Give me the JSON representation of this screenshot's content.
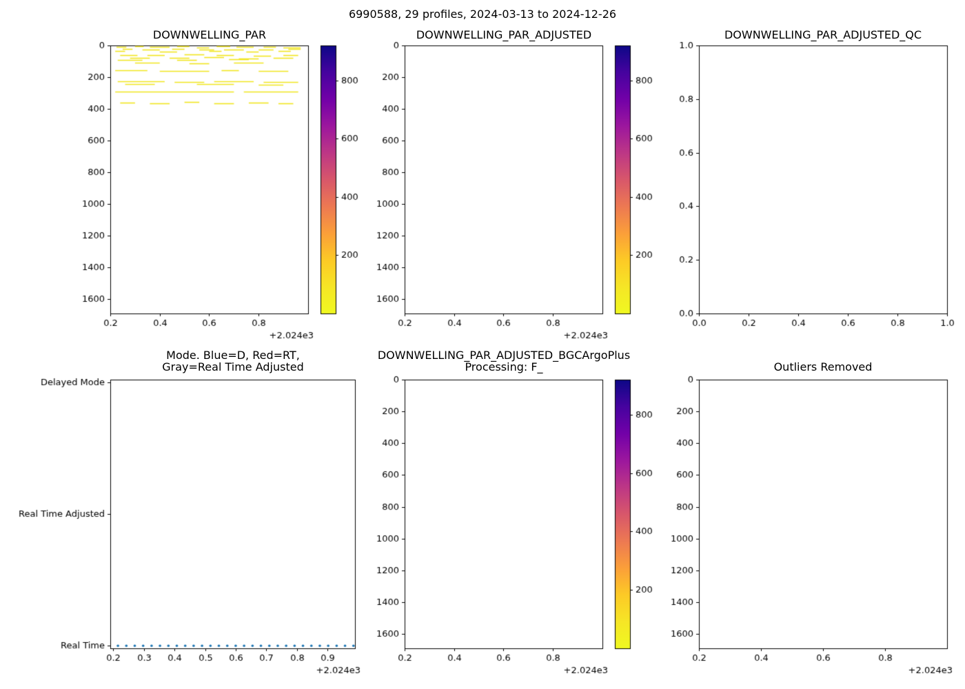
{
  "figure": {
    "title": "6990588, 29 profiles, 2024-03-13 to 2024-12-26",
    "background": "#ffffff"
  },
  "colors": {
    "axis": "#000000",
    "tick_label": "#000000",
    "dash_series": "#f1e51d",
    "dot_series": "#1f77b4"
  },
  "colormap": {
    "name": "plasma_r",
    "stops_top_to_bottom": [
      {
        "t": 0.0,
        "c": "#0d0887"
      },
      {
        "t": 0.1,
        "c": "#46039f"
      },
      {
        "t": 0.2,
        "c": "#7201a8"
      },
      {
        "t": 0.3,
        "c": "#9c179e"
      },
      {
        "t": 0.4,
        "c": "#bd3786"
      },
      {
        "t": 0.5,
        "c": "#d8576b"
      },
      {
        "t": 0.6,
        "c": "#ed7953"
      },
      {
        "t": 0.7,
        "c": "#fb9f3a"
      },
      {
        "t": 0.8,
        "c": "#fdca26"
      },
      {
        "t": 0.9,
        "c": "#f6e626"
      },
      {
        "t": 1.0,
        "c": "#f0f921"
      }
    ]
  },
  "chart_data": [
    {
      "type": "scatter",
      "title": "DOWNWELLING_PAR",
      "xlabel": "",
      "ylabel": "",
      "x_range": [
        2024.2,
        2025.0
      ],
      "y_range": [
        0,
        1690
      ],
      "x_ticks": {
        "values": [
          2024.2,
          2024.4,
          2024.6,
          2024.8
        ],
        "labels": [
          "0.2",
          "0.4",
          "0.6",
          "0.8"
        ],
        "offset": "+2.024e3"
      },
      "y_ticks": {
        "values": [
          0,
          200,
          400,
          600,
          800,
          1000,
          1200,
          1400,
          1600
        ],
        "labels": [
          "0",
          "200",
          "400",
          "600",
          "800",
          "1000",
          "1200",
          "1400",
          "1600"
        ]
      },
      "colorbar": {
        "range": [
          0,
          920
        ],
        "ticks": [
          200,
          400,
          600,
          800
        ],
        "tick_labels": [
          "200",
          "400",
          "600",
          "800"
        ],
        "cmap": "plasma_r"
      },
      "series": {
        "kind": "hdash",
        "color_key": "dash_series",
        "note": "horizontal dash markers [x_start_year, x_end_year, depth_m]",
        "segments": [
          [
            2024.225,
            2024.265,
            8
          ],
          [
            2024.3,
            2024.335,
            5
          ],
          [
            2024.36,
            2024.44,
            10
          ],
          [
            2024.47,
            2024.52,
            6
          ],
          [
            2024.55,
            2024.6,
            12
          ],
          [
            2024.63,
            2024.685,
            4
          ],
          [
            2024.71,
            2024.78,
            9
          ],
          [
            2024.82,
            2024.87,
            7
          ],
          [
            2024.9,
            2024.97,
            11
          ],
          [
            2024.25,
            2024.29,
            22
          ],
          [
            2024.33,
            2024.4,
            25
          ],
          [
            2024.45,
            2024.5,
            20
          ],
          [
            2024.56,
            2024.62,
            28
          ],
          [
            2024.66,
            2024.74,
            24
          ],
          [
            2024.8,
            2024.86,
            26
          ],
          [
            2024.92,
            2024.97,
            23
          ],
          [
            2024.22,
            2024.26,
            36
          ],
          [
            2024.4,
            2024.47,
            38
          ],
          [
            2024.6,
            2024.65,
            33
          ],
          [
            2024.75,
            2024.8,
            37
          ],
          [
            2024.88,
            2024.93,
            34
          ],
          [
            2024.24,
            2024.31,
            60
          ],
          [
            2024.35,
            2024.42,
            62
          ],
          [
            2024.5,
            2024.58,
            58
          ],
          [
            2024.63,
            2024.7,
            61
          ],
          [
            2024.78,
            2024.85,
            64
          ],
          [
            2024.9,
            2024.96,
            59
          ],
          [
            2024.28,
            2024.36,
            78
          ],
          [
            2024.44,
            2024.52,
            80
          ],
          [
            2024.58,
            2024.66,
            76
          ],
          [
            2024.72,
            2024.8,
            82
          ],
          [
            2024.86,
            2024.94,
            79
          ],
          [
            2024.23,
            2024.33,
            90
          ],
          [
            2024.47,
            2024.55,
            92
          ],
          [
            2024.68,
            2024.76,
            88
          ],
          [
            2024.3,
            2024.4,
            110
          ],
          [
            2024.52,
            2024.6,
            112
          ],
          [
            2024.7,
            2024.82,
            108
          ],
          [
            2024.22,
            2024.35,
            158
          ],
          [
            2024.4,
            2024.6,
            160
          ],
          [
            2024.65,
            2024.72,
            156
          ],
          [
            2024.8,
            2024.92,
            162
          ],
          [
            2024.23,
            2024.42,
            228
          ],
          [
            2024.46,
            2024.58,
            232
          ],
          [
            2024.62,
            2024.78,
            226
          ],
          [
            2024.82,
            2024.96,
            230
          ],
          [
            2024.26,
            2024.38,
            244
          ],
          [
            2024.55,
            2024.7,
            242
          ],
          [
            2024.8,
            2024.9,
            246
          ],
          [
            2024.22,
            2024.7,
            290
          ],
          [
            2024.74,
            2024.96,
            292
          ],
          [
            2024.24,
            2024.3,
            360
          ],
          [
            2024.36,
            2024.44,
            365
          ],
          [
            2024.5,
            2024.56,
            358
          ],
          [
            2024.62,
            2024.7,
            363
          ],
          [
            2024.76,
            2024.84,
            361
          ],
          [
            2024.88,
            2024.94,
            366
          ]
        ]
      }
    },
    {
      "type": "scatter",
      "title": "DOWNWELLING_PAR_ADJUSTED",
      "x_range": [
        2024.2,
        2025.0
      ],
      "y_range": [
        0,
        1690
      ],
      "x_ticks": {
        "values": [
          2024.2,
          2024.4,
          2024.6,
          2024.8
        ],
        "labels": [
          "0.2",
          "0.4",
          "0.6",
          "0.8"
        ],
        "offset": "+2.024e3"
      },
      "y_ticks": {
        "values": [
          0,
          200,
          400,
          600,
          800,
          1000,
          1200,
          1400,
          1600
        ],
        "labels": [
          "0",
          "200",
          "400",
          "600",
          "800",
          "1000",
          "1200",
          "1400",
          "1600"
        ]
      },
      "colorbar": {
        "range": [
          0,
          920
        ],
        "ticks": [
          200,
          400,
          600,
          800
        ],
        "tick_labels": [
          "200",
          "400",
          "600",
          "800"
        ],
        "cmap": "plasma_r"
      },
      "series": null
    },
    {
      "type": "scatter",
      "title": "DOWNWELLING_PAR_ADJUSTED_QC",
      "x_range": [
        0.0,
        1.0
      ],
      "y_range": [
        1.0,
        0.0
      ],
      "x_ticks": {
        "values": [
          0.0,
          0.2,
          0.4,
          0.6,
          0.8,
          1.0
        ],
        "labels": [
          "0.0",
          "0.2",
          "0.4",
          "0.6",
          "0.8",
          "1.0"
        ]
      },
      "y_ticks": {
        "values": [
          1.0,
          0.8,
          0.6,
          0.4,
          0.2,
          0.0
        ],
        "labels": [
          "1.0",
          "0.8",
          "0.6",
          "0.4",
          "0.2",
          "0.0"
        ]
      },
      "series": null
    },
    {
      "type": "scatter",
      "title": "Mode. Blue=D, Red=RT,\nGray=Real Time Adjusted",
      "x_range": [
        2024.19,
        2024.99
      ],
      "y_range": [
        2.02,
        -0.02
      ],
      "x_ticks": {
        "values": [
          2024.2,
          2024.3,
          2024.4,
          2024.5,
          2024.6,
          2024.7,
          2024.8,
          2024.9
        ],
        "labels": [
          "0.2",
          "0.3",
          "0.4",
          "0.5",
          "0.6",
          "0.7",
          "0.8",
          "0.9"
        ],
        "offset": "+2.024e3"
      },
      "y_ticks": {
        "values": [
          2,
          1,
          0
        ],
        "labels": [
          "Delayed Mode",
          "Real Time Adjusted",
          "Real Time"
        ]
      },
      "series": {
        "kind": "dots",
        "color_key": "dot_series",
        "y": 0,
        "category": "Real Time",
        "x_values": [
          2024.215,
          2024.2425,
          2024.27,
          2024.2975,
          2024.325,
          2024.3525,
          2024.38,
          2024.4075,
          2024.435,
          2024.4625,
          2024.49,
          2024.5175,
          2024.545,
          2024.5725,
          2024.6,
          2024.6275,
          2024.655,
          2024.6825,
          2024.71,
          2024.7375,
          2024.765,
          2024.7925,
          2024.82,
          2024.8475,
          2024.875,
          2024.9025,
          2024.93,
          2024.9575,
          2024.985
        ]
      }
    },
    {
      "type": "scatter",
      "title": "DOWNWELLING_PAR_ADJUSTED_BGCArgoPlus\nProcessing: F_",
      "x_range": [
        2024.2,
        2025.0
      ],
      "y_range": [
        0,
        1690
      ],
      "x_ticks": {
        "values": [
          2024.2,
          2024.4,
          2024.6,
          2024.8
        ],
        "labels": [
          "0.2",
          "0.4",
          "0.6",
          "0.8"
        ],
        "offset": "+2.024e3"
      },
      "y_ticks": {
        "values": [
          0,
          200,
          400,
          600,
          800,
          1000,
          1200,
          1400,
          1600
        ],
        "labels": [
          "0",
          "200",
          "400",
          "600",
          "800",
          "1000",
          "1200",
          "1400",
          "1600"
        ]
      },
      "colorbar": {
        "range": [
          0,
          920
        ],
        "ticks": [
          200,
          400,
          600,
          800
        ],
        "tick_labels": [
          "200",
          "400",
          "600",
          "800"
        ],
        "cmap": "plasma_r"
      },
      "series": null
    },
    {
      "type": "scatter",
      "title": "Outliers Removed",
      "x_range": [
        2024.2,
        2025.0
      ],
      "y_range": [
        0,
        1690
      ],
      "x_ticks": {
        "values": [
          2024.2,
          2024.4,
          2024.6,
          2024.8
        ],
        "labels": [
          "0.2",
          "0.4",
          "0.6",
          "0.8"
        ],
        "offset": "+2.024e3"
      },
      "y_ticks": {
        "values": [
          0,
          200,
          400,
          600,
          800,
          1000,
          1200,
          1400,
          1600
        ],
        "labels": [
          "0",
          "200",
          "400",
          "600",
          "800",
          "1000",
          "1200",
          "1400",
          "1600"
        ]
      },
      "series": null
    }
  ]
}
